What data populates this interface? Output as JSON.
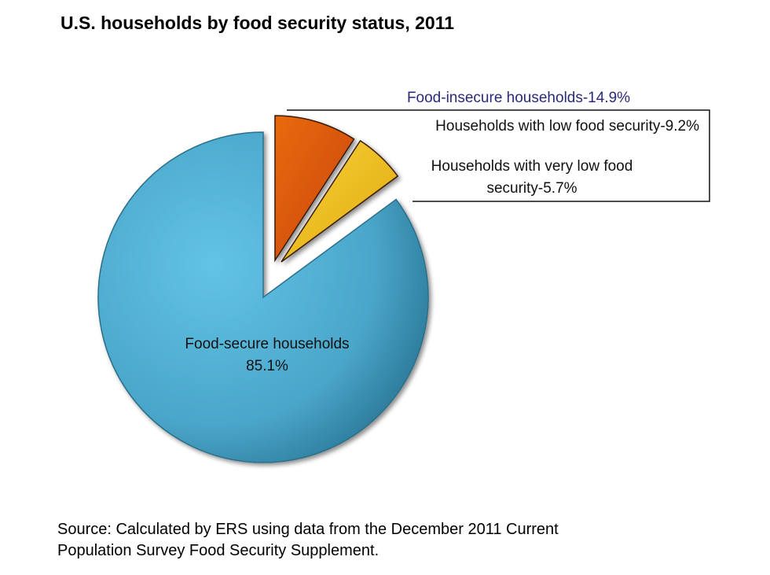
{
  "chart_data": {
    "type": "pie",
    "title": "U.S. households by food security status, 2011",
    "slices": [
      {
        "name": "Households with low food security",
        "value": 9.2,
        "label": "Households with low food security-9.2%",
        "color": "#e0550a",
        "exploded": true
      },
      {
        "name": "Households with very low food security",
        "value": 5.7,
        "label_lines": [
          "Households with very low food",
          "security-5.7%"
        ],
        "color": "#f2c21a",
        "exploded": true
      },
      {
        "name": "Food-secure households",
        "value": 85.1,
        "label_lines": [
          "Food-secure households",
          "85.1%"
        ],
        "color": "#4aa6c9",
        "exploded": false
      }
    ],
    "group_label": {
      "text": "Food-insecure households-14.9%",
      "value": 14.9,
      "color": "#2a2a7a"
    },
    "start_angle": "12 o'clock, clockwise",
    "source": [
      "Source: Calculated by ERS using data from the December 2011 Current",
      "Population Survey Food Security Supplement."
    ]
  }
}
